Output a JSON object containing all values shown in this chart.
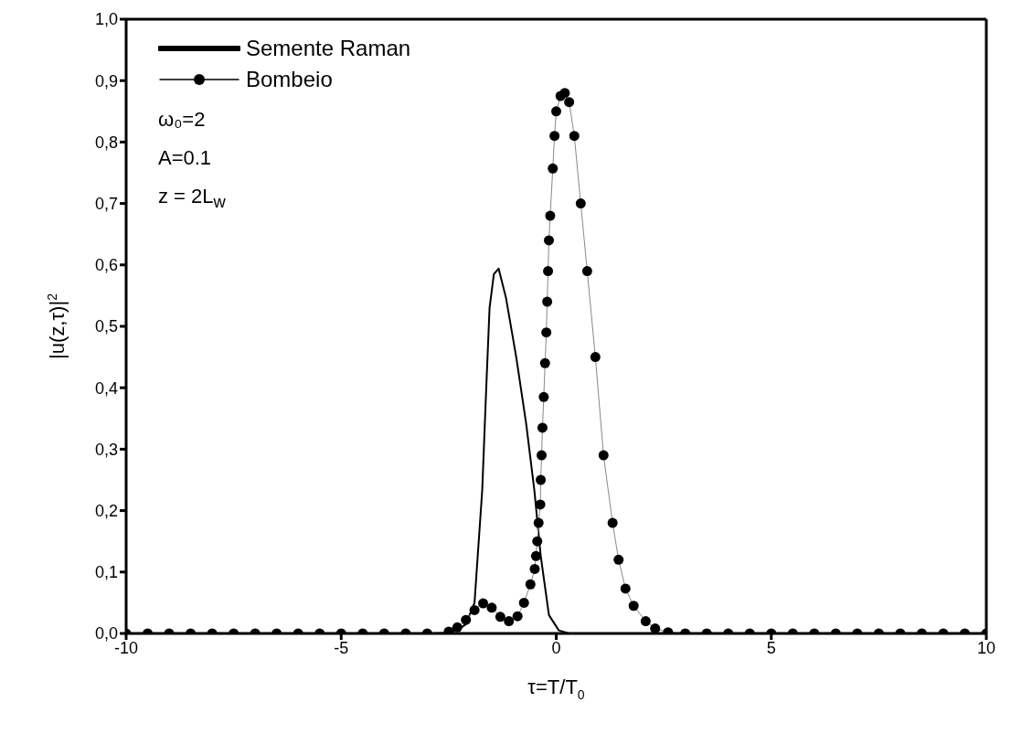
{
  "chart_data": {
    "type": "line",
    "xlabel": "τ=T/T$_{0}$",
    "ylabel": "|u(z,τ)|$^{2}$",
    "xlim": [
      -10,
      10
    ],
    "xticks": [
      -10,
      -5,
      0,
      5,
      10
    ],
    "ylim": [
      0,
      1
    ],
    "yticks": [
      {
        "value": 0,
        "label": "0,0"
      },
      {
        "value": 0.1,
        "label": "0,1"
      },
      {
        "value": 0.2,
        "label": "0,2"
      },
      {
        "value": 0.3,
        "label": "0,3"
      },
      {
        "value": 0.4,
        "label": "0,4"
      },
      {
        "value": 0.5,
        "label": "0,5"
      },
      {
        "value": 0.6,
        "label": "0,6"
      },
      {
        "value": 0.7,
        "label": "0,7"
      },
      {
        "value": 0.8,
        "label": "0,8"
      },
      {
        "value": 0.9,
        "label": "0,9"
      },
      {
        "value": 1,
        "label": "1,0"
      }
    ],
    "grid": false,
    "legend": "top left",
    "annotations": [
      "ω₀=2",
      "A=0.1",
      "z = 2L$_{w}$"
    ],
    "series": [
      {
        "name": "Semente Raman",
        "color": "#000000",
        "marker": "none",
        "x": [
          -10,
          -8,
          -6,
          -4,
          -3,
          -2.6,
          -2.3,
          -2.1,
          -1.9,
          -1.72,
          -1.63,
          -1.55,
          -1.45,
          -1.34,
          -1.17,
          -0.93,
          -0.7,
          -0.51,
          -0.36,
          -0.17,
          0.06,
          0.3,
          1,
          3,
          6,
          10
        ],
        "values": [
          0,
          0,
          0,
          0,
          0,
          0,
          0.005,
          0.015,
          0.05,
          0.234,
          0.395,
          0.53,
          0.585,
          0.594,
          0.547,
          0.45,
          0.342,
          0.234,
          0.126,
          0.03,
          0.005,
          0,
          0,
          0,
          0,
          0
        ]
      },
      {
        "name": "Bombeio",
        "color": "#000000",
        "marker": "circle",
        "x": [
          -10,
          -9.5,
          -9,
          -8.5,
          -8,
          -7.5,
          -7,
          -6.5,
          -6,
          -5.5,
          -5,
          -4.5,
          -4,
          -3.5,
          -3,
          -2.5,
          -2.3,
          -2.1,
          -1.9,
          -1.7,
          -1.5,
          -1.3,
          -1.1,
          -0.9,
          -0.75,
          -0.6,
          -0.5,
          -0.47,
          -0.44,
          -0.41,
          -0.37,
          -0.36,
          -0.34,
          -0.32,
          -0.29,
          -0.26,
          -0.23,
          -0.21,
          -0.19,
          -0.17,
          -0.14,
          -0.08,
          -0.04,
          0,
          0.1,
          0.2,
          0.3,
          0.42,
          0.57,
          0.72,
          0.91,
          1.1,
          1.31,
          1.45,
          1.61,
          1.8,
          2.08,
          2.3,
          2.6,
          3,
          3.5,
          4,
          4.5,
          5,
          5.5,
          6,
          6.5,
          7,
          7.5,
          8,
          8.5,
          9,
          9.5,
          10
        ],
        "values": [
          0,
          0,
          0,
          0,
          0,
          0,
          0,
          0,
          0,
          0,
          0,
          0,
          0,
          0,
          0,
          0.003,
          0.01,
          0.022,
          0.038,
          0.049,
          0.042,
          0.027,
          0.02,
          0.028,
          0.05,
          0.08,
          0.105,
          0.126,
          0.15,
          0.18,
          0.21,
          0.25,
          0.29,
          0.335,
          0.385,
          0.44,
          0.49,
          0.54,
          0.59,
          0.64,
          0.68,
          0.757,
          0.81,
          0.85,
          0.875,
          0.88,
          0.865,
          0.81,
          0.7,
          0.59,
          0.45,
          0.29,
          0.18,
          0.12,
          0.073,
          0.045,
          0.02,
          0.008,
          0.002,
          0,
          0,
          0,
          0,
          0,
          0,
          0,
          0,
          0,
          0,
          0,
          0,
          0,
          0,
          0
        ]
      }
    ]
  }
}
